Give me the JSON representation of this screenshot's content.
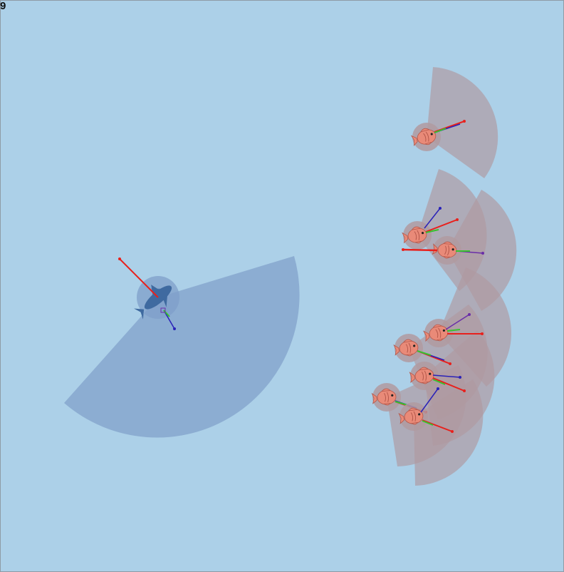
{
  "frame": "9",
  "colors": {
    "water": "#acd0e8",
    "border": "#8e9ba6",
    "predator_fov": "#7f9fc9",
    "prey_fov": "#b09aa0",
    "prey_body": "#e98a78",
    "prey_outline": "#b5584b",
    "predator_body": "#3f6aa0",
    "velocity_vector": "#e8201c",
    "force_vector_a": "#2a22b8",
    "force_vector_b": "#38c22e",
    "force_vector_c": "#6a2ea8"
  },
  "predator": {
    "icon": "shark-icon"
  },
  "prey_icon": "fish-icon"
}
